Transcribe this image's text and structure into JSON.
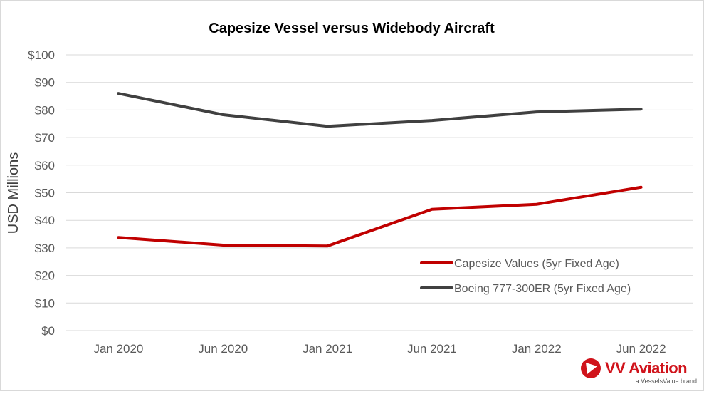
{
  "chart_data": {
    "type": "line",
    "title": "Capesize Vessel versus Widebody  Aircraft",
    "ylabel": "USD Millions",
    "xlabel": "",
    "categories": [
      "Jan 2020",
      "Jun 2020",
      "Jan 2021",
      "Jun 2021",
      "Jan 2022",
      "Jun 2022"
    ],
    "ylim": [
      0,
      100
    ],
    "yticks": [
      0,
      10,
      20,
      30,
      40,
      50,
      60,
      70,
      80,
      90,
      100
    ],
    "ytick_labels": [
      "$0",
      "$10",
      "$20",
      "$30",
      "$40",
      "$50",
      "$60",
      "$70",
      "$80",
      "$90",
      "$100"
    ],
    "grid": true,
    "legend_position": "bottom-right",
    "series": [
      {
        "name": "Capesize Values (5yr Fixed Age)",
        "color": "#c00000",
        "values": [
          33.8,
          31,
          30.7,
          44,
          45.8,
          52
        ]
      },
      {
        "name": "Boeing 777-300ER (5yr Fixed Age)",
        "color": "#404040",
        "values": [
          86,
          78.3,
          74.1,
          76.2,
          79.3,
          80.3
        ]
      }
    ]
  },
  "brand": {
    "logo_icon": "vv-triangle-logo",
    "name": "VV Aviation",
    "tagline": "a VesselsValue brand",
    "color": "#d0131b"
  }
}
